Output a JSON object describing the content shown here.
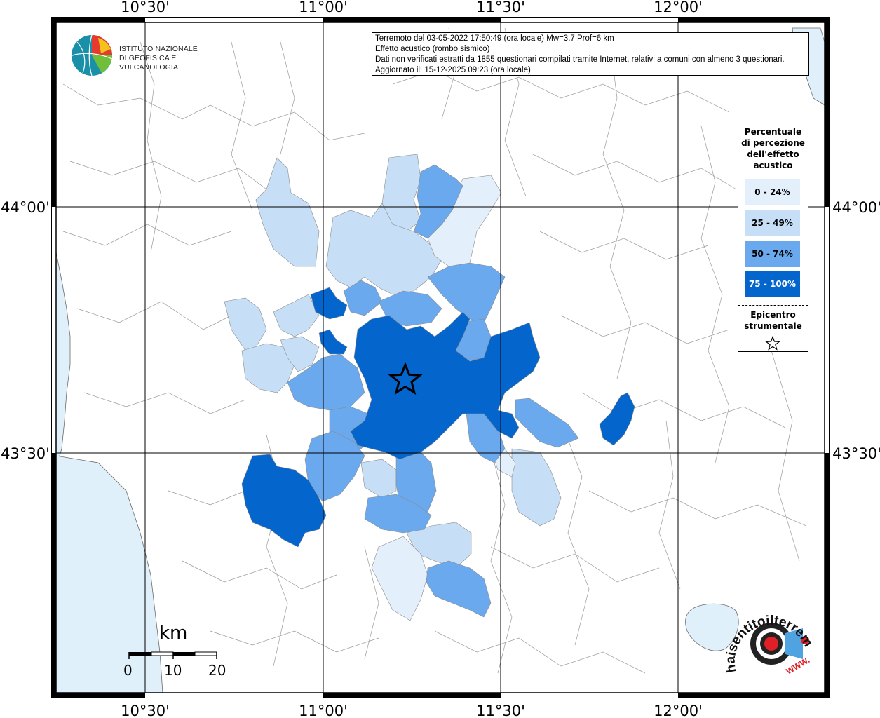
{
  "map": {
    "title_lines": [
      "Terremoto del 03-05-2022 17:50:49 (ora locale) Mw=3.7 Prof=6 km",
      "Effetto acustico (rombo sismico)",
      "Dati non verificati estratti da 1855 questionari compilati tramite Internet, relativi a comuni con almeno 3 questionari.",
      "Aggiornato il: 15-12-2025 09:23 (ora locale)"
    ],
    "lon_labels": [
      "10°30'",
      "11°00'",
      "11°30'",
      "12°00'"
    ],
    "lat_labels": [
      "44°00'",
      "43°30'"
    ],
    "institution": [
      "ISTITUTO NAZIONALE",
      "DI GEOFISICA E VULCANOLOGIA"
    ],
    "epicenter_icon": "star-icon"
  },
  "legend": {
    "title": [
      "Percentuale",
      "di percezione",
      "dell'effetto",
      "acustico"
    ],
    "classes": [
      {
        "label": "0 - 24%",
        "color": "#e3f0fb"
      },
      {
        "label": "25 - 49%",
        "color": "#c6dff6"
      },
      {
        "label": "50 - 74%",
        "color": "#6ba9ee"
      },
      {
        "label": "75 - 100%",
        "color": "#0466cc"
      }
    ],
    "epicenter_label": [
      "Epicentro",
      "strumentale"
    ]
  },
  "scale": {
    "unit": "km",
    "ticks": [
      "0",
      "10",
      "20"
    ]
  },
  "watermark": {
    "text": "haisentitoilterremoto.it",
    "url": "WWW."
  }
}
